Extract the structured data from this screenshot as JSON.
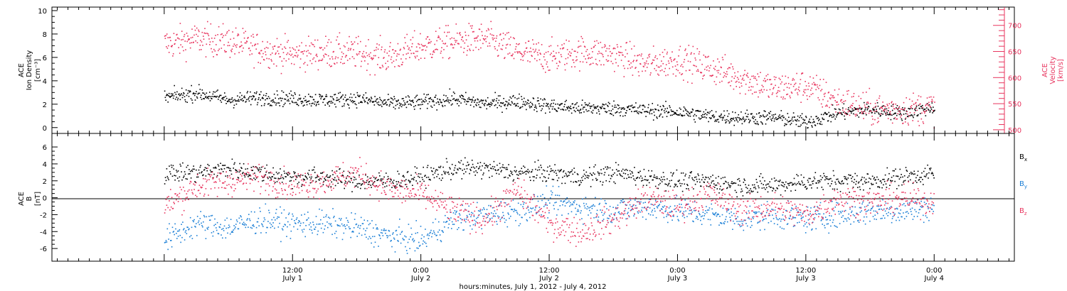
{
  "colors": {
    "black": "#000000",
    "red": "#e8345e",
    "blue": "#1b7fd6"
  },
  "chart_data": [
    {
      "type": "scatter",
      "panel": "top",
      "left_axis": {
        "label_lines": [
          "ACE",
          "Ion Density",
          "[cm⁻³]"
        ],
        "ylim": [
          -0.5,
          10.3
        ],
        "ticks": [
          0,
          2,
          4,
          6,
          8,
          10
        ]
      },
      "right_axis": {
        "label_lines": [
          "ACE",
          "Velocity",
          "[km/s]"
        ],
        "ylim": [
          493,
          735
        ],
        "ticks": [
          500,
          550,
          600,
          650,
          700
        ]
      },
      "series": [
        {
          "axis": "left",
          "color": "#000000",
          "x": [
            0,
            3,
            6,
            9,
            12,
            15,
            18,
            21,
            24,
            27,
            30,
            33,
            36,
            39,
            42,
            45,
            48,
            51,
            54,
            57,
            60,
            63,
            66,
            69,
            72
          ],
          "y": [
            2.6,
            3.0,
            2.4,
            2.6,
            2.5,
            2.4,
            2.5,
            2.1,
            2.2,
            2.5,
            2.1,
            2.3,
            1.9,
            1.7,
            1.7,
            1.5,
            1.4,
            1.0,
            0.9,
            0.9,
            0.5,
            1.3,
            1.6,
            1.3,
            1.8
          ]
        },
        {
          "axis": "right",
          "color": "#e8345e",
          "x": [
            0,
            3,
            6,
            9,
            12,
            15,
            18,
            21,
            24,
            27,
            30,
            33,
            36,
            39,
            42,
            45,
            48,
            51,
            54,
            57,
            60,
            63,
            66,
            69,
            72
          ],
          "y": [
            665,
            675,
            670,
            655,
            645,
            650,
            648,
            640,
            660,
            670,
            675,
            650,
            640,
            650,
            645,
            625,
            635,
            620,
            600,
            580,
            585,
            555,
            540,
            540,
            545
          ]
        }
      ]
    },
    {
      "type": "scatter",
      "panel": "bottom",
      "left_axis": {
        "label_lines": [
          "ACE",
          "B",
          "[nT]"
        ],
        "ylim": [
          -7.5,
          7.6
        ],
        "ticks": [
          -6,
          -4,
          -2,
          0,
          2,
          4,
          6
        ]
      },
      "legend": [
        {
          "text": "B",
          "sub": "x",
          "color": "#000000"
        },
        {
          "text": "B",
          "sub": "y",
          "color": "#1b7fd6"
        },
        {
          "text": "B",
          "sub": "z",
          "color": "#e8345e"
        }
      ],
      "series": [
        {
          "name": "Bx",
          "color": "#000000",
          "x": [
            0,
            3,
            6,
            9,
            12,
            15,
            18,
            21,
            24,
            27,
            30,
            33,
            36,
            39,
            42,
            45,
            48,
            51,
            54,
            57,
            60,
            63,
            66,
            69,
            72
          ],
          "y": [
            3.0,
            3.0,
            3.5,
            3.0,
            2.5,
            2.5,
            2.0,
            2.0,
            2.5,
            3.5,
            3.5,
            3.0,
            3.0,
            2.5,
            3.0,
            2.5,
            2.0,
            2.0,
            1.5,
            1.5,
            2.0,
            2.0,
            2.0,
            2.5,
            3.0
          ]
        },
        {
          "name": "By",
          "color": "#1b7fd6",
          "x": [
            0,
            3,
            6,
            9,
            12,
            15,
            18,
            21,
            24,
            27,
            30,
            33,
            36,
            39,
            42,
            45,
            48,
            51,
            54,
            57,
            60,
            63,
            66,
            69,
            72
          ],
          "y": [
            -5.0,
            -3.0,
            -3.5,
            -2.5,
            -3.0,
            -3.0,
            -3.5,
            -4.5,
            -5.0,
            -2.5,
            -2.0,
            -1.5,
            -0.5,
            -1.0,
            -1.5,
            -1.0,
            -1.5,
            -2.0,
            -2.5,
            -2.0,
            -2.5,
            -2.0,
            -1.5,
            -1.5,
            -1.0
          ]
        },
        {
          "name": "Bz",
          "color": "#e8345e",
          "x": [
            0,
            3,
            6,
            9,
            12,
            15,
            18,
            21,
            24,
            27,
            30,
            33,
            36,
            39,
            42,
            45,
            48,
            51,
            54,
            57,
            60,
            63,
            66,
            69,
            72
          ],
          "y": [
            -1.0,
            1.5,
            2.0,
            2.5,
            1.5,
            2.0,
            3.0,
            1.0,
            0.5,
            -1.5,
            -2.5,
            1.0,
            -3.0,
            -4.0,
            -2.5,
            0.0,
            -1.0,
            0.5,
            -1.5,
            -1.0,
            -2.0,
            0.0,
            -0.5,
            0.0,
            -0.5
          ]
        }
      ]
    }
  ],
  "x_axis": {
    "xlim": [
      -10.5,
      79.5
    ],
    "ticks": [
      {
        "x": 12,
        "line1": "12:00",
        "line2": "July 1"
      },
      {
        "x": 24,
        "line1": "0:00",
        "line2": "July 2"
      },
      {
        "x": 36,
        "line1": "12:00",
        "line2": "July 2"
      },
      {
        "x": 48,
        "line1": "0:00",
        "line2": "July 3"
      },
      {
        "x": 60,
        "line1": "12:00",
        "line2": "July 3"
      },
      {
        "x": 72,
        "line1": "0:00",
        "line2": "July 4"
      }
    ],
    "label": "hours:minutes, July  1, 2012 - July  4, 2012"
  }
}
